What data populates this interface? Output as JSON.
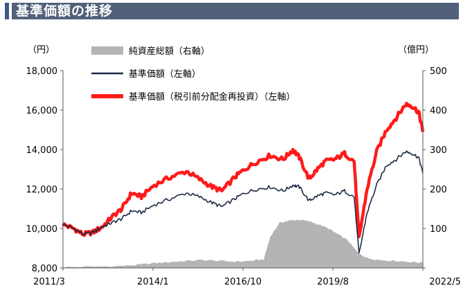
{
  "header": {
    "title": "基準価額の推移"
  },
  "chart_data": {
    "type": "line",
    "left_unit": "（円）",
    "right_unit": "（億円）",
    "x_ticks": [
      "2011/3",
      "2014/1",
      "2016/10",
      "2019/8",
      "2022/5"
    ],
    "x_range": [
      2011.17,
      2022.33
    ],
    "left_ticks": [
      "8,000",
      "10,000",
      "12,000",
      "14,000",
      "16,000",
      "18,000"
    ],
    "left_ylim": [
      8000,
      18000
    ],
    "right_ticks": [
      "0",
      "100",
      "200",
      "300",
      "400",
      "500"
    ],
    "right_ylim": [
      0,
      500
    ],
    "legend_position": "top-center",
    "colors": {
      "nav_line": "#1c2a44",
      "nav_reinvest_line": "#ff1a1a",
      "net_assets_area": "#b4b4b4"
    },
    "series": [
      {
        "name": "純資産総額（右軸）",
        "kind": "area",
        "axis": "right",
        "x": [
          2011.17,
          2012.0,
          2013.0,
          2013.5,
          2014.0,
          2014.5,
          2015.0,
          2015.5,
          2016.0,
          2016.5,
          2017.0,
          2017.4,
          2017.6,
          2017.9,
          2018.2,
          2018.5,
          2018.8,
          2019.1,
          2019.4,
          2019.7,
          2020.0,
          2020.3,
          2020.6,
          2021.0,
          2021.5,
          2022.0,
          2022.33
        ],
        "values": [
          2,
          3,
          5,
          8,
          12,
          15,
          18,
          20,
          18,
          16,
          18,
          22,
          80,
          115,
          120,
          122,
          118,
          110,
          100,
          85,
          70,
          40,
          25,
          20,
          18,
          15,
          13
        ]
      },
      {
        "name": "基準価額（左軸）",
        "kind": "line",
        "axis": "left",
        "x": [
          2011.17,
          2011.5,
          2011.8,
          2012.1,
          2012.4,
          2012.7,
          2013.0,
          2013.3,
          2013.6,
          2014.0,
          2014.5,
          2015.0,
          2015.4,
          2015.8,
          2016.1,
          2016.5,
          2016.8,
          2017.2,
          2017.6,
          2018.0,
          2018.3,
          2018.5,
          2018.8,
          2019.0,
          2019.3,
          2019.6,
          2019.9,
          2020.2,
          2020.35,
          2020.6,
          2020.9,
          2021.2,
          2021.5,
          2021.8,
          2022.0,
          2022.2,
          2022.33
        ],
        "values": [
          10200,
          10000,
          9700,
          9800,
          10100,
          10300,
          10500,
          10900,
          10800,
          11200,
          11500,
          11800,
          11600,
          11300,
          11100,
          11500,
          11800,
          12000,
          12100,
          11900,
          12200,
          12100,
          11400,
          11600,
          11800,
          11700,
          11900,
          11600,
          8700,
          10800,
          12200,
          13200,
          13500,
          13900,
          13800,
          13600,
          12800
        ]
      },
      {
        "name": "基準価額（税引前分配金再投資）（左軸）",
        "kind": "line",
        "axis": "left",
        "x": [
          2011.17,
          2011.5,
          2011.8,
          2012.1,
          2012.4,
          2012.7,
          2013.0,
          2013.3,
          2013.6,
          2014.0,
          2014.5,
          2015.0,
          2015.4,
          2015.8,
          2016.1,
          2016.5,
          2016.8,
          2017.2,
          2017.6,
          2018.0,
          2018.3,
          2018.5,
          2018.8,
          2019.0,
          2019.3,
          2019.6,
          2019.9,
          2020.2,
          2020.35,
          2020.6,
          2020.9,
          2021.2,
          2021.5,
          2021.8,
          2022.0,
          2022.2,
          2022.33
        ],
        "values": [
          10200,
          10000,
          9700,
          9800,
          10100,
          10600,
          11000,
          11800,
          11600,
          12200,
          12600,
          12900,
          12500,
          12100,
          11900,
          12600,
          13000,
          13400,
          13700,
          13500,
          14000,
          13600,
          12500,
          12900,
          13400,
          13500,
          13800,
          13400,
          9500,
          12000,
          13900,
          15000,
          15600,
          16300,
          16200,
          15900,
          14900
        ]
      }
    ]
  }
}
